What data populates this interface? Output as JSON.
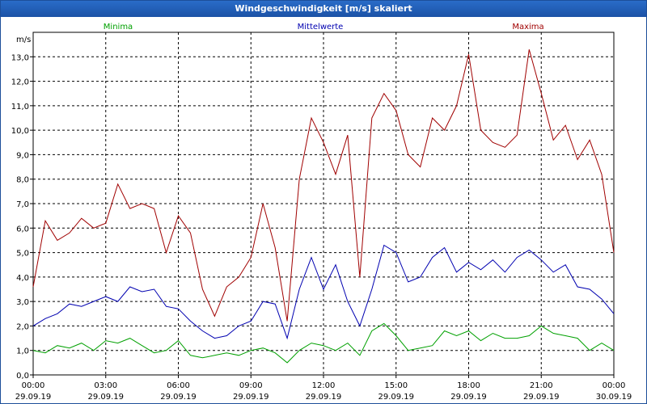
{
  "window": {
    "title": "Windgeschwindigkeit [m/s] skaliert"
  },
  "chart_data": {
    "type": "line",
    "title": "Windgeschwindigkeit [m/s] skaliert",
    "ylabel": "m/s",
    "ylim": [
      0,
      14
    ],
    "yticks": [
      "0,0",
      "1,0",
      "2,0",
      "3,0",
      "4,0",
      "5,0",
      "6,0",
      "7,0",
      "8,0",
      "9,0",
      "10,0",
      "11,0",
      "12,0",
      "13,0"
    ],
    "xlim": [
      0,
      24
    ],
    "xticks": [
      {
        "time": "00:00",
        "date": "29.09.19"
      },
      {
        "time": "03:00",
        "date": "29.09.19"
      },
      {
        "time": "06:00",
        "date": "29.09.19"
      },
      {
        "time": "09:00",
        "date": "29.09.19"
      },
      {
        "time": "12:00",
        "date": "29.09.19"
      },
      {
        "time": "15:00",
        "date": "29.09.19"
      },
      {
        "time": "18:00",
        "date": "29.09.19"
      },
      {
        "time": "21:00",
        "date": "29.09.19"
      },
      {
        "time": "00:00",
        "date": "30.09.19"
      }
    ],
    "grid": true,
    "legend_position": "top",
    "series": [
      {
        "name": "Minima",
        "color": "#00a000",
        "x": [
          0,
          0.5,
          1,
          1.5,
          2,
          2.5,
          3,
          3.5,
          4,
          4.5,
          5,
          5.5,
          6,
          6.5,
          7,
          7.5,
          8,
          8.5,
          9,
          9.5,
          10,
          10.5,
          11,
          11.5,
          12,
          12.5,
          13,
          13.5,
          14,
          14.5,
          15,
          15.5,
          16,
          16.5,
          17,
          17.5,
          18,
          18.5,
          19,
          19.5,
          20,
          20.5,
          21,
          21.5,
          22,
          22.5,
          23,
          23.5,
          24
        ],
        "values": [
          1.0,
          0.9,
          1.2,
          1.1,
          1.3,
          1.0,
          1.4,
          1.3,
          1.5,
          1.2,
          0.9,
          1.0,
          1.4,
          0.8,
          0.7,
          0.8,
          0.9,
          0.8,
          1.0,
          1.1,
          0.9,
          0.5,
          1.0,
          1.3,
          1.2,
          1.0,
          1.3,
          0.8,
          1.8,
          2.1,
          1.6,
          1.0,
          1.1,
          1.2,
          1.8,
          1.6,
          1.8,
          1.4,
          1.7,
          1.5,
          1.5,
          1.6,
          2.0,
          1.7,
          1.6,
          1.5,
          1.0,
          1.3,
          1.0
        ]
      },
      {
        "name": "Mittelwerte",
        "color": "#0000b0",
        "x": [
          0,
          0.5,
          1,
          1.5,
          2,
          2.5,
          3,
          3.5,
          4,
          4.5,
          5,
          5.5,
          6,
          6.5,
          7,
          7.5,
          8,
          8.5,
          9,
          9.5,
          10,
          10.5,
          11,
          11.5,
          12,
          12.5,
          13,
          13.5,
          14,
          14.5,
          15,
          15.5,
          16,
          16.5,
          17,
          17.5,
          18,
          18.5,
          19,
          19.5,
          20,
          20.5,
          21,
          21.5,
          22,
          22.5,
          23,
          23.5,
          24
        ],
        "values": [
          2.0,
          2.3,
          2.5,
          2.9,
          2.8,
          3.0,
          3.2,
          3.0,
          3.6,
          3.4,
          3.5,
          2.8,
          2.7,
          2.2,
          1.8,
          1.5,
          1.6,
          2.0,
          2.2,
          3.0,
          2.9,
          1.5,
          3.5,
          4.8,
          3.5,
          4.5,
          3.0,
          2.0,
          3.5,
          5.3,
          5.0,
          3.8,
          4.0,
          4.8,
          5.2,
          4.2,
          4.6,
          4.3,
          4.7,
          4.2,
          4.8,
          5.1,
          4.7,
          4.2,
          4.5,
          3.6,
          3.5,
          3.1,
          2.5
        ]
      },
      {
        "name": "Maxima",
        "color": "#a00000",
        "x": [
          0,
          0.5,
          1,
          1.5,
          2,
          2.5,
          3,
          3.5,
          4,
          4.5,
          5,
          5.5,
          6,
          6.5,
          7,
          7.5,
          8,
          8.5,
          9,
          9.5,
          10,
          10.5,
          11,
          11.5,
          12,
          12.5,
          13,
          13.5,
          14,
          14.5,
          15,
          15.5,
          16,
          16.5,
          17,
          17.5,
          18,
          18.5,
          19,
          19.5,
          20,
          20.5,
          21,
          21.5,
          22,
          22.5,
          23,
          23.5,
          24
        ],
        "values": [
          3.6,
          6.3,
          5.5,
          5.8,
          6.4,
          6.0,
          6.2,
          7.8,
          6.8,
          7.0,
          6.8,
          5.0,
          6.5,
          5.8,
          3.5,
          2.4,
          3.6,
          4.0,
          4.8,
          7.0,
          5.2,
          2.2,
          8.0,
          10.5,
          9.5,
          8.2,
          9.8,
          4.0,
          10.5,
          11.5,
          10.8,
          9.0,
          8.5,
          10.5,
          10.0,
          11.0,
          13.1,
          10.0,
          9.5,
          9.3,
          9.8,
          13.3,
          11.5,
          9.6,
          10.2,
          8.8,
          9.6,
          8.2,
          5.0
        ]
      }
    ]
  }
}
